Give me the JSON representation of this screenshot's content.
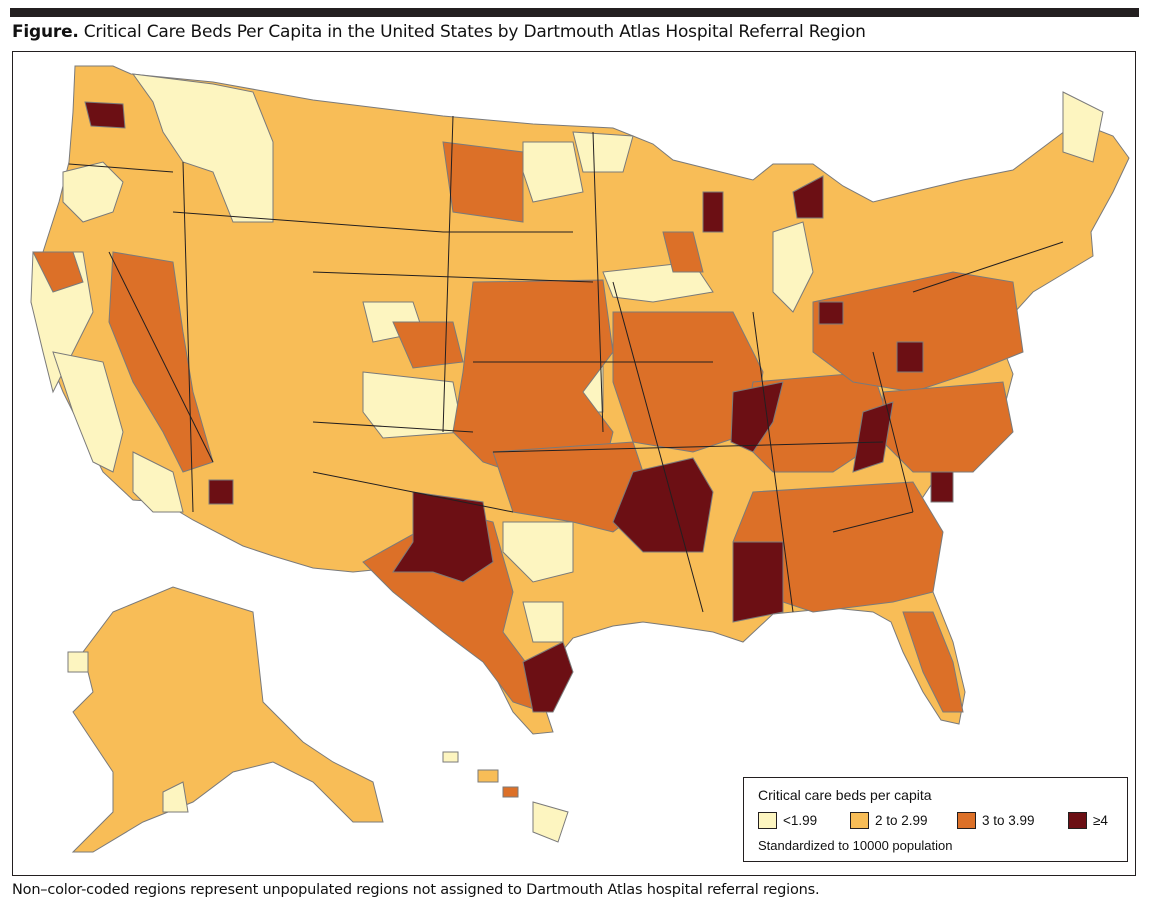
{
  "figure": {
    "label": "Figure.",
    "title": "Critical Care Beds Per Capita in the United States by Dartmouth Atlas Hospital Referral Region"
  },
  "colors": {
    "lt_1_99": "#fdf5c0",
    "c2_to_2_99": "#f8bd57",
    "c3_to_3_99": "#dc7028",
    "ge_4": "#6c0f14",
    "border": "#7a7a7a",
    "state_border": "#231f20"
  },
  "legend": {
    "title": "Critical care beds per capita",
    "items": [
      {
        "label": "<1.99",
        "color_key": "lt_1_99"
      },
      {
        "label": "2 to 2.99",
        "color_key": "c2_to_2_99"
      },
      {
        "label": "3 to 3.99",
        "color_key": "c3_to_3_99"
      },
      {
        "label": "≥4",
        "color_key": "ge_4"
      }
    ],
    "note": "Standardized to 10000 population"
  },
  "footnote": "Non–color-coded regions represent unpopulated regions not assigned to Dartmouth Atlas hospital referral regions."
}
